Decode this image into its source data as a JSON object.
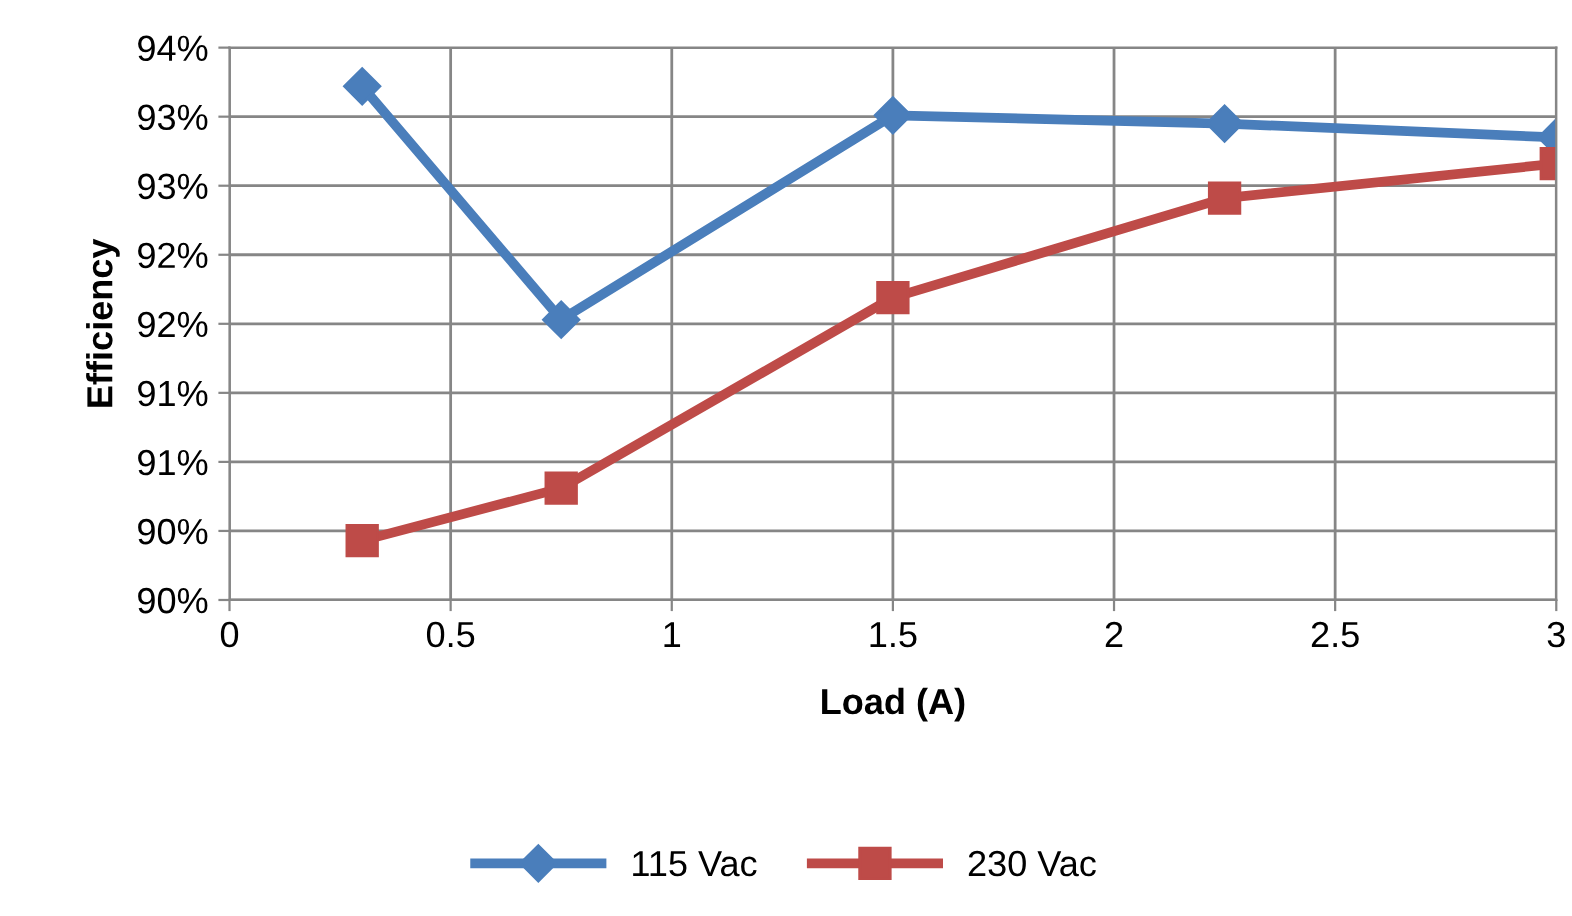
{
  "chart_data": {
    "type": "line",
    "xlabel": "Load (A)",
    "ylabel": "Efficiency",
    "x": [
      0.3,
      0.75,
      1.5,
      2.25,
      3
    ],
    "series": [
      {
        "name": "115 Vac",
        "color": "#4a7ebb",
        "marker": "diamond",
        "values": [
          93.22,
          91.53,
          93.01,
          92.95,
          92.85
        ]
      },
      {
        "name": "230 Vac",
        "color": "#be4b48",
        "marker": "square",
        "values": [
          89.93,
          90.31,
          91.69,
          92.41,
          92.66
        ]
      }
    ],
    "xlim": [
      0,
      3
    ],
    "xticks": [
      0,
      0.5,
      1,
      1.5,
      2,
      2.5,
      3
    ],
    "ylim": [
      89.5,
      93.5
    ],
    "yticks": [
      {
        "value": 89.5,
        "label": "90%"
      },
      {
        "value": 90,
        "label": "90%"
      },
      {
        "value": 90.5,
        "label": "91%"
      },
      {
        "value": 91,
        "label": "91%"
      },
      {
        "value": 91.5,
        "label": "92%"
      },
      {
        "value": 92,
        "label": "92%"
      },
      {
        "value": 92.5,
        "label": "93%"
      },
      {
        "value": 93,
        "label": "93%"
      },
      {
        "value": 93.5,
        "label": "94%"
      }
    ],
    "grid": true,
    "legend": "bottom",
    "line_style": "solid"
  }
}
